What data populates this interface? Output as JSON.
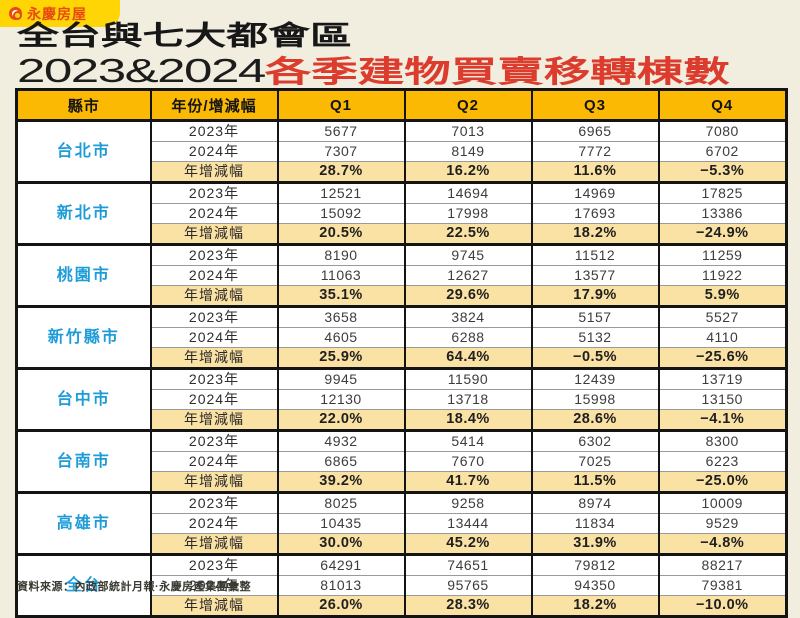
{
  "brand": {
    "name": "永慶房屋",
    "badge_color": "#FFD506",
    "brand_color": "#E8490F"
  },
  "title": {
    "line1": "全台與七大都會區",
    "year_range": "2023&2024",
    "line2_red": "各季建物買賣移轉棟數",
    "red_color": "#DC3C2E"
  },
  "colors": {
    "page_background": "#F1EEDF",
    "header_yellow": "#FBB903",
    "yoy_peach": "#FAE1A4",
    "city_blue": "#1E9CD8",
    "border_black": "#141414"
  },
  "table": {
    "headers": [
      "縣市",
      "年份/增減幅",
      "Q1",
      "Q2",
      "Q3",
      "Q4"
    ],
    "groups": [
      {
        "city": "台北市",
        "rows": [
          {
            "label": "2023年",
            "values": [
              "5677",
              "7013",
              "6965",
              "7080"
            ]
          },
          {
            "label": "2024年",
            "values": [
              "7307",
              "8149",
              "7772",
              "6702"
            ]
          },
          {
            "label": "年增減幅",
            "values": [
              "28.7%",
              "16.2%",
              "11.6%",
              "−5.3%"
            ]
          }
        ]
      },
      {
        "city": "新北市",
        "rows": [
          {
            "label": "2023年",
            "values": [
              "12521",
              "14694",
              "14969",
              "17825"
            ]
          },
          {
            "label": "2024年",
            "values": [
              "15092",
              "17998",
              "17693",
              "13386"
            ]
          },
          {
            "label": "年增減幅",
            "values": [
              "20.5%",
              "22.5%",
              "18.2%",
              "−24.9%"
            ]
          }
        ]
      },
      {
        "city": "桃園市",
        "rows": [
          {
            "label": "2023年",
            "values": [
              "8190",
              "9745",
              "11512",
              "11259"
            ]
          },
          {
            "label": "2024年",
            "values": [
              "11063",
              "12627",
              "13577",
              "11922"
            ]
          },
          {
            "label": "年增減幅",
            "values": [
              "35.1%",
              "29.6%",
              "17.9%",
              "5.9%"
            ]
          }
        ]
      },
      {
        "city": "新竹縣市",
        "rows": [
          {
            "label": "2023年",
            "values": [
              "3658",
              "3824",
              "5157",
              "5527"
            ]
          },
          {
            "label": "2024年",
            "values": [
              "4605",
              "6288",
              "5132",
              "4110"
            ]
          },
          {
            "label": "年增減幅",
            "values": [
              "25.9%",
              "64.4%",
              "−0.5%",
              "−25.6%"
            ]
          }
        ]
      },
      {
        "city": "台中市",
        "rows": [
          {
            "label": "2023年",
            "values": [
              "9945",
              "11590",
              "12439",
              "13719"
            ]
          },
          {
            "label": "2024年",
            "values": [
              "12130",
              "13718",
              "15998",
              "13150"
            ]
          },
          {
            "label": "年增減幅",
            "values": [
              "22.0%",
              "18.4%",
              "28.6%",
              "−4.1%"
            ]
          }
        ]
      },
      {
        "city": "台南市",
        "rows": [
          {
            "label": "2023年",
            "values": [
              "4932",
              "5414",
              "6302",
              "8300"
            ]
          },
          {
            "label": "2024年",
            "values": [
              "6865",
              "7670",
              "7025",
              "6223"
            ]
          },
          {
            "label": "年增減幅",
            "values": [
              "39.2%",
              "41.7%",
              "11.5%",
              "−25.0%"
            ]
          }
        ]
      },
      {
        "city": "高雄市",
        "rows": [
          {
            "label": "2023年",
            "values": [
              "8025",
              "9258",
              "8974",
              "10009"
            ]
          },
          {
            "label": "2024年",
            "values": [
              "10435",
              "13444",
              "11834",
              "9529"
            ]
          },
          {
            "label": "年增減幅",
            "values": [
              "30.0%",
              "45.2%",
              "31.9%",
              "−4.8%"
            ]
          }
        ]
      },
      {
        "city": "全台",
        "rows": [
          {
            "label": "2023年",
            "values": [
              "64291",
              "74651",
              "79812",
              "88217"
            ]
          },
          {
            "label": "2024年",
            "values": [
              "81013",
              "95765",
              "94350",
              "79381"
            ]
          },
          {
            "label": "年增減幅",
            "values": [
              "26.0%",
              "28.3%",
              "18.2%",
              "−10.0%"
            ]
          }
        ]
      }
    ]
  },
  "footer": {
    "source": "資料來源：內政部統計月報·永慶房產集團彙整"
  },
  "chart_data": {
    "type": "table",
    "title": "全台與七大都會區 2023&2024 各季建物買賣移轉棟數",
    "columns": [
      "縣市",
      "年份/增減幅",
      "Q1",
      "Q2",
      "Q3",
      "Q4"
    ],
    "regions": [
      {
        "name": "台北市",
        "y2023": [
          5677,
          7013,
          6965,
          7080
        ],
        "y2024": [
          7307,
          8149,
          7772,
          6702
        ],
        "yoy_pct": [
          28.7,
          16.2,
          11.6,
          -5.3
        ]
      },
      {
        "name": "新北市",
        "y2023": [
          12521,
          14694,
          14969,
          17825
        ],
        "y2024": [
          15092,
          17998,
          17693,
          13386
        ],
        "yoy_pct": [
          20.5,
          22.5,
          18.2,
          -24.9
        ]
      },
      {
        "name": "桃園市",
        "y2023": [
          8190,
          9745,
          11512,
          11259
        ],
        "y2024": [
          11063,
          12627,
          13577,
          11922
        ],
        "yoy_pct": [
          35.1,
          29.6,
          17.9,
          5.9
        ]
      },
      {
        "name": "新竹縣市",
        "y2023": [
          3658,
          3824,
          5157,
          5527
        ],
        "y2024": [
          4605,
          6288,
          5132,
          4110
        ],
        "yoy_pct": [
          25.9,
          64.4,
          -0.5,
          -25.6
        ]
      },
      {
        "name": "台中市",
        "y2023": [
          9945,
          11590,
          12439,
          13719
        ],
        "y2024": [
          12130,
          13718,
          15998,
          13150
        ],
        "yoy_pct": [
          22.0,
          18.4,
          28.6,
          -4.1
        ]
      },
      {
        "name": "台南市",
        "y2023": [
          4932,
          5414,
          6302,
          8300
        ],
        "y2024": [
          6865,
          7670,
          7025,
          6223
        ],
        "yoy_pct": [
          39.2,
          41.7,
          11.5,
          -25.0
        ]
      },
      {
        "name": "高雄市",
        "y2023": [
          8025,
          9258,
          8974,
          10009
        ],
        "y2024": [
          10435,
          13444,
          11834,
          9529
        ],
        "yoy_pct": [
          30.0,
          45.2,
          31.9,
          -4.8
        ]
      },
      {
        "name": "全台",
        "y2023": [
          64291,
          74651,
          79812,
          88217
        ],
        "y2024": [
          81013,
          95765,
          94350,
          79381
        ],
        "yoy_pct": [
          26.0,
          28.3,
          18.2,
          -10.0
        ]
      }
    ]
  }
}
